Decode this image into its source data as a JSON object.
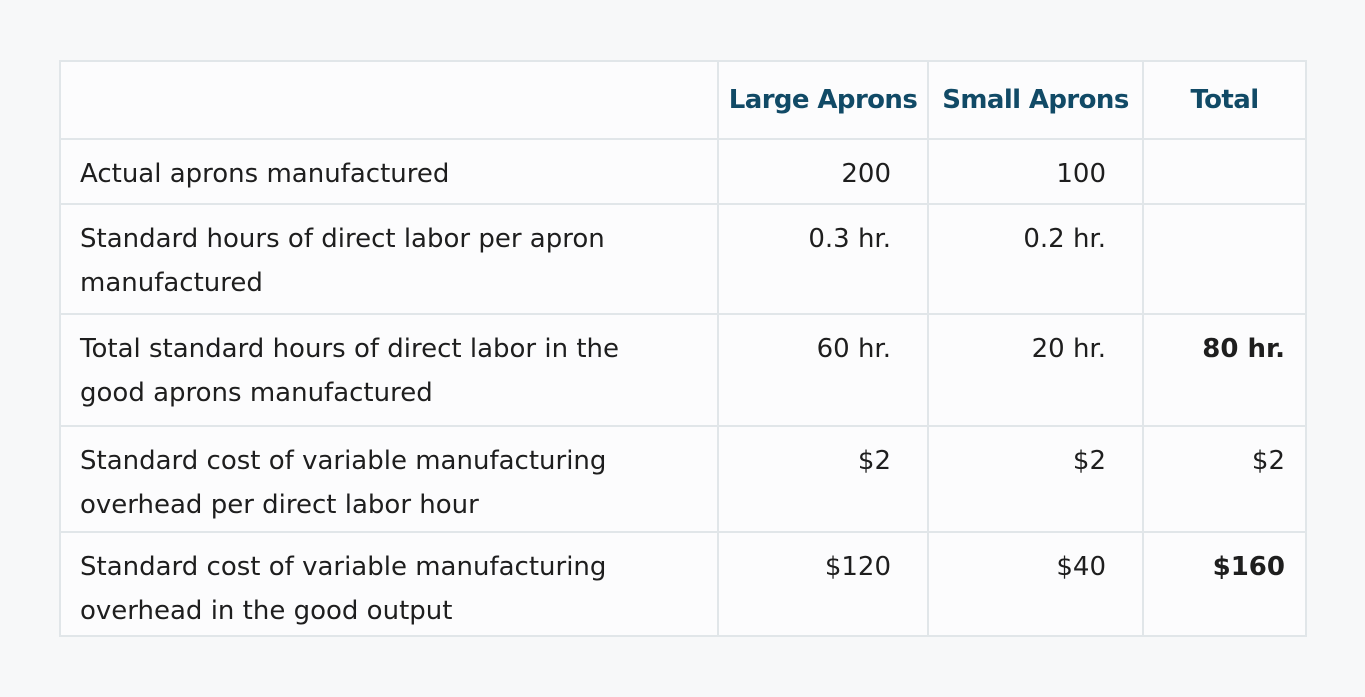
{
  "table": {
    "headers": [
      "Large Aprons",
      "Small Aprons",
      "Total"
    ],
    "rows": [
      [
        "Actual aprons manufactured",
        "200",
        "100"
      ],
      [
        "Standard hours of direct labor per apron manufactured",
        "0.3 hr.",
        "0.2 hr."
      ],
      [
        "Total standard hours of direct labor in the good aprons manufactured",
        "60 hr.",
        "20 hr.",
        "80 hr."
      ],
      [
        "Standard cost of variable manufacturing overhead per direct labor hour",
        "$2",
        "$2",
        "$2"
      ],
      [
        "Standard cost of variable manufacturing overhead in the good output",
        "$120",
        "$40",
        "$160"
      ]
    ]
  }
}
